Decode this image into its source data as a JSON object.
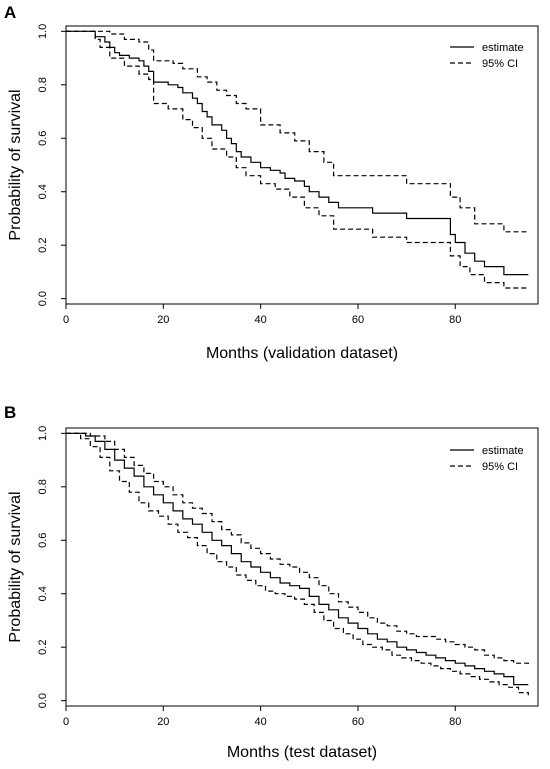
{
  "chart_data": [
    {
      "panel_label": "A",
      "type": "line",
      "xlabel": "Months (validation dataset)",
      "ylabel": "Probability of survival",
      "xlim": [
        0,
        97
      ],
      "ylim": [
        -0.02,
        1.02
      ],
      "xticks": [
        0,
        20,
        40,
        60,
        80
      ],
      "yticks": [
        0.0,
        0.2,
        0.4,
        0.6,
        0.8,
        1.0
      ],
      "legend": {
        "placement": "top-right",
        "entries": [
          {
            "label": "estimate",
            "style": "solid"
          },
          {
            "label": "95% CI",
            "style": "dashed"
          }
        ]
      },
      "step": true,
      "series": [
        {
          "name": "estimate",
          "style": "solid",
          "x": [
            0,
            6,
            8,
            9,
            10,
            11,
            13,
            15,
            16,
            17,
            18,
            21,
            23,
            24,
            26,
            27,
            28,
            29,
            30,
            32,
            33,
            34,
            35,
            36,
            38,
            40,
            42,
            44,
            45,
            47,
            49,
            50,
            52,
            54,
            56,
            63,
            70,
            79,
            80,
            82,
            84,
            86,
            90,
            95
          ],
          "y": [
            1.0,
            0.98,
            0.96,
            0.94,
            0.92,
            0.91,
            0.9,
            0.89,
            0.87,
            0.85,
            0.81,
            0.8,
            0.79,
            0.77,
            0.75,
            0.73,
            0.7,
            0.68,
            0.65,
            0.63,
            0.6,
            0.58,
            0.55,
            0.53,
            0.51,
            0.49,
            0.48,
            0.47,
            0.45,
            0.44,
            0.42,
            0.4,
            0.38,
            0.36,
            0.34,
            0.32,
            0.3,
            0.24,
            0.21,
            0.17,
            0.14,
            0.12,
            0.09,
            0.09
          ]
        },
        {
          "name": "95% CI upper",
          "style": "dashed",
          "x": [
            0,
            9,
            12,
            15,
            17,
            18,
            22,
            24,
            27,
            29,
            31,
            33,
            35,
            37,
            40,
            44,
            47,
            50,
            53,
            55,
            63,
            70,
            79,
            81,
            84,
            90,
            95
          ],
          "y": [
            1.0,
            0.99,
            0.97,
            0.96,
            0.93,
            0.89,
            0.88,
            0.86,
            0.83,
            0.81,
            0.78,
            0.76,
            0.73,
            0.71,
            0.65,
            0.62,
            0.59,
            0.55,
            0.51,
            0.46,
            0.46,
            0.43,
            0.38,
            0.34,
            0.28,
            0.25,
            0.25
          ]
        },
        {
          "name": "95% CI lower",
          "style": "dashed",
          "x": [
            0,
            6,
            7,
            9,
            12,
            15,
            17,
            18,
            21,
            24,
            26,
            28,
            30,
            33,
            35,
            37,
            40,
            43,
            46,
            49,
            52,
            55,
            63,
            70,
            79,
            81,
            83,
            86,
            90,
            95
          ],
          "y": [
            1.0,
            0.97,
            0.94,
            0.9,
            0.87,
            0.84,
            0.82,
            0.73,
            0.71,
            0.67,
            0.64,
            0.6,
            0.56,
            0.53,
            0.49,
            0.46,
            0.43,
            0.41,
            0.38,
            0.34,
            0.31,
            0.26,
            0.23,
            0.21,
            0.16,
            0.12,
            0.09,
            0.06,
            0.04,
            0.04
          ]
        }
      ]
    },
    {
      "panel_label": "B",
      "type": "line",
      "xlabel": "Months (test dataset)",
      "ylabel": "Probability of survival",
      "xlim": [
        0,
        97
      ],
      "ylim": [
        -0.02,
        1.02
      ],
      "xticks": [
        0,
        20,
        40,
        60,
        80
      ],
      "yticks": [
        0.0,
        0.2,
        0.4,
        0.6,
        0.8,
        1.0
      ],
      "legend": {
        "placement": "top-right",
        "entries": [
          {
            "label": "estimate",
            "style": "solid"
          },
          {
            "label": "95% CI",
            "style": "dashed"
          }
        ]
      },
      "step": true,
      "series": [
        {
          "name": "estimate",
          "style": "solid",
          "x": [
            0,
            4,
            6,
            8,
            10,
            12,
            14,
            16,
            18,
            20,
            22,
            24,
            26,
            28,
            30,
            32,
            34,
            36,
            38,
            40,
            42,
            44,
            46,
            48,
            50,
            52,
            54,
            56,
            58,
            60,
            62,
            64,
            66,
            68,
            70,
            72,
            74,
            76,
            78,
            80,
            82,
            84,
            86,
            88,
            90,
            92,
            95
          ],
          "y": [
            1.0,
            0.99,
            0.97,
            0.94,
            0.9,
            0.87,
            0.84,
            0.8,
            0.77,
            0.74,
            0.71,
            0.68,
            0.66,
            0.63,
            0.6,
            0.58,
            0.55,
            0.52,
            0.5,
            0.48,
            0.46,
            0.44,
            0.43,
            0.42,
            0.39,
            0.36,
            0.34,
            0.31,
            0.29,
            0.27,
            0.25,
            0.23,
            0.22,
            0.2,
            0.19,
            0.18,
            0.17,
            0.16,
            0.15,
            0.14,
            0.13,
            0.12,
            0.11,
            0.1,
            0.09,
            0.06,
            0.06
          ]
        },
        {
          "name": "95% CI upper",
          "style": "dashed",
          "x": [
            0,
            5,
            8,
            10,
            12,
            14,
            16,
            18,
            20,
            22,
            24,
            26,
            28,
            30,
            32,
            34,
            36,
            38,
            40,
            42,
            44,
            46,
            48,
            50,
            52,
            54,
            56,
            58,
            60,
            62,
            64,
            66,
            68,
            70,
            72,
            74,
            76,
            78,
            80,
            82,
            84,
            86,
            88,
            90,
            92,
            95
          ],
          "y": [
            1.0,
            0.99,
            0.97,
            0.94,
            0.91,
            0.88,
            0.85,
            0.82,
            0.8,
            0.77,
            0.74,
            0.72,
            0.7,
            0.67,
            0.64,
            0.62,
            0.59,
            0.57,
            0.55,
            0.53,
            0.51,
            0.5,
            0.48,
            0.46,
            0.43,
            0.4,
            0.37,
            0.35,
            0.33,
            0.31,
            0.29,
            0.28,
            0.26,
            0.25,
            0.24,
            0.24,
            0.23,
            0.22,
            0.21,
            0.2,
            0.19,
            0.17,
            0.16,
            0.15,
            0.14,
            0.13
          ]
        },
        {
          "name": "95% CI lower",
          "style": "dashed",
          "x": [
            0,
            3,
            5,
            7,
            9,
            11,
            13,
            15,
            17,
            19,
            21,
            23,
            25,
            27,
            29,
            31,
            33,
            35,
            37,
            39,
            41,
            43,
            45,
            47,
            49,
            51,
            53,
            55,
            57,
            59,
            61,
            63,
            65,
            67,
            69,
            71,
            73,
            75,
            77,
            79,
            81,
            83,
            85,
            87,
            89,
            91,
            93,
            95
          ],
          "y": [
            1.0,
            0.98,
            0.95,
            0.91,
            0.86,
            0.82,
            0.78,
            0.74,
            0.71,
            0.69,
            0.66,
            0.63,
            0.61,
            0.58,
            0.55,
            0.52,
            0.5,
            0.47,
            0.45,
            0.43,
            0.41,
            0.4,
            0.39,
            0.38,
            0.36,
            0.33,
            0.3,
            0.27,
            0.25,
            0.23,
            0.21,
            0.2,
            0.19,
            0.17,
            0.16,
            0.15,
            0.14,
            0.13,
            0.12,
            0.11,
            0.1,
            0.09,
            0.08,
            0.07,
            0.06,
            0.05,
            0.03,
            0.02
          ]
        }
      ]
    }
  ]
}
